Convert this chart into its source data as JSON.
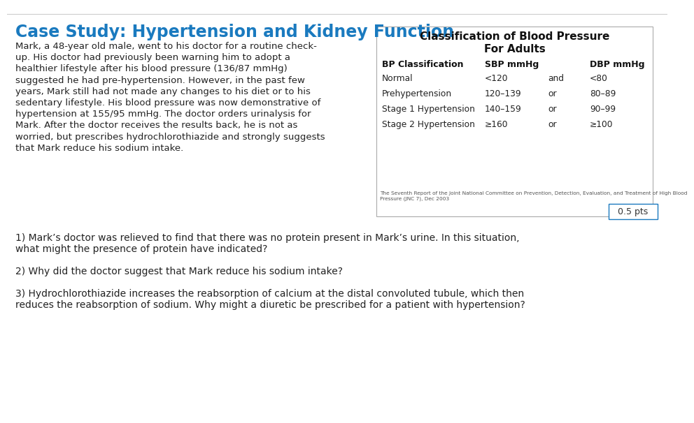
{
  "title": "Case Study: Hypertension and Kidney Function",
  "title_color": "#1a7abf",
  "background_color": "#ffffff",
  "lines_para": [
    "Mark, a 48-year old male, went to his doctor for a routine check-",
    "up. His doctor had previously been warning him to adopt a",
    "healthier lifestyle after his blood pressure (136/87 mmHg)",
    "suggested he had pre-hypertension. However, in the past few",
    "years, Mark still had not made any changes to his diet or to his",
    "sedentary lifestyle. His blood pressure was now demonstrative of",
    "hypertension at 155/95 mmHg. The doctor orders urinalysis for",
    "Mark. After the doctor receives the results back, he is not as",
    "worried, but prescribes hydrochlorothiazide and strongly suggests",
    "that Mark reduce his sodium intake."
  ],
  "table_title_line1": "Classification of Blood Pressure",
  "table_title_line2": "For Adults",
  "table_headers": [
    "BP Classification",
    "SBP mmHg",
    "",
    "DBP mmHg"
  ],
  "table_rows": [
    [
      "Normal",
      "<120",
      "and",
      "<80"
    ],
    [
      "Prehypertension",
      "120–139",
      "or",
      "80–89"
    ],
    [
      "Stage 1 Hypertension",
      "140–159",
      "or",
      "90–99"
    ],
    [
      "Stage 2 Hypertension",
      "≥160",
      "or",
      "≥100"
    ]
  ],
  "table_footnote": "The Seventh Report of the Joint National Committee on Prevention, Detection, Evaluation, and Treatment of High Blood\nPressure (JNC 7), Dec 2003",
  "pts_label": "0.5 pts",
  "q1_line1": "1) Mark’s doctor was relieved to find that there was no protein present in Mark’s urine. In this situation,",
  "q1_line2": "what might the presence of protein have indicated?",
  "q2": "2) Why did the doctor suggest that Mark reduce his sodium intake?",
  "q3_line1": "3) Hydrochlorothiazide increases the reabsorption of calcium at the distal convoluted tubule, which then",
  "q3_line2": "reduces the reabsorption of sodium. Why might a diuretic be prescribed for a patient with hypertension?"
}
